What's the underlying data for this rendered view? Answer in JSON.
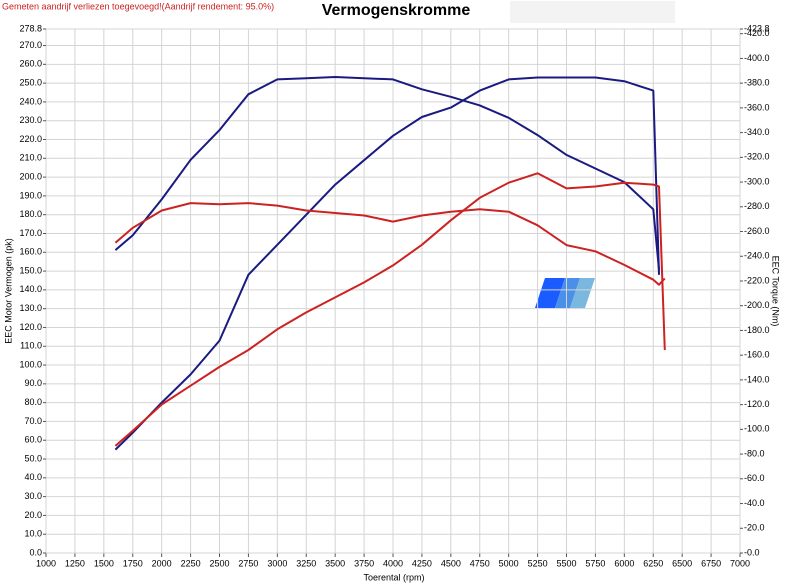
{
  "chart_data": {
    "type": "line",
    "title": "Vermogenskromme",
    "subtitle": "Gemeten aandrijf verliezen toegevoegd!(Aandrijf rendement: 95.0%)",
    "x_label": "Toerental (rpm)",
    "y_label": "EEC Motor Vermogen (pk)",
    "y2_label": "EEC Torque (Nm)",
    "grid": true,
    "xlim": [
      1000,
      7000
    ],
    "xticks": [
      1000,
      1250,
      1500,
      1750,
      2000,
      2250,
      2500,
      2750,
      3000,
      3250,
      3500,
      3750,
      4000,
      4250,
      4500,
      4750,
      5000,
      5250,
      5500,
      5750,
      6000,
      6250,
      6500,
      6750,
      7000
    ],
    "ylim": [
      0,
      278.8
    ],
    "yticks": [
      {
        "value": 0,
        "label": "0.0"
      },
      {
        "value": 10,
        "label": "10.0"
      },
      {
        "value": 20,
        "label": "20.0"
      },
      {
        "value": 30,
        "label": "30.0"
      },
      {
        "value": 40,
        "label": "40.0"
      },
      {
        "value": 50,
        "label": "50.0"
      },
      {
        "value": 60,
        "label": "60.0"
      },
      {
        "value": 70,
        "label": "70.0"
      },
      {
        "value": 80,
        "label": "80.0"
      },
      {
        "value": 90,
        "label": "90.0"
      },
      {
        "value": 100,
        "label": "100.0"
      },
      {
        "value": 110,
        "label": "110.0"
      },
      {
        "value": 120,
        "label": "120.0"
      },
      {
        "value": 130,
        "label": "130.0"
      },
      {
        "value": 140,
        "label": "140.0"
      },
      {
        "value": 150,
        "label": "150.0"
      },
      {
        "value": 160,
        "label": "160.0"
      },
      {
        "value": 170,
        "label": "170.0"
      },
      {
        "value": 180,
        "label": "180.0"
      },
      {
        "value": 190,
        "label": "190.0"
      },
      {
        "value": 200,
        "label": "200.0"
      },
      {
        "value": 210,
        "label": "210.0"
      },
      {
        "value": 220,
        "label": "220.0"
      },
      {
        "value": 230,
        "label": "230.0"
      },
      {
        "value": 240,
        "label": "240.0"
      },
      {
        "value": 250,
        "label": "250.0"
      },
      {
        "value": 260,
        "label": "260.0"
      },
      {
        "value": 270,
        "label": "270.0"
      },
      278.8
    ],
    "y2lim": [
      0,
      423.8
    ],
    "y2ticks": [
      {
        "value": 0,
        "label": "-0.0"
      },
      {
        "value": 20,
        "label": "-20.0"
      },
      {
        "value": 40,
        "label": "-40.0"
      },
      {
        "value": 60,
        "label": "-60.0"
      },
      {
        "value": 80,
        "label": "-80.0"
      },
      {
        "value": 100,
        "label": "-100.0"
      },
      {
        "value": 120,
        "label": "-120.0"
      },
      {
        "value": 140,
        "label": "-140.0"
      },
      {
        "value": 160,
        "label": "-160.0"
      },
      {
        "value": 180,
        "label": "-180.0"
      },
      {
        "value": 200,
        "label": "-200.0"
      },
      {
        "value": 220,
        "label": "-220.0"
      },
      {
        "value": 240,
        "label": "-240.0"
      },
      {
        "value": 260,
        "label": "-260.0"
      },
      {
        "value": 280,
        "label": "-280.0"
      },
      {
        "value": 300,
        "label": "-300.0"
      },
      {
        "value": 320,
        "label": "-320.0"
      },
      {
        "value": 340,
        "label": "-340.0"
      },
      {
        "value": 360,
        "label": "-360.0"
      },
      {
        "value": 380,
        "label": "-380.0"
      },
      {
        "value": 400,
        "label": "-400.0"
      },
      {
        "value": 420,
        "label": "-420.0"
      },
      {
        "value": 423.8,
        "label": "-423.8"
      }
    ],
    "x": [
      1600,
      1750,
      2000,
      2250,
      2500,
      2750,
      3000,
      3250,
      3500,
      3750,
      4000,
      4250,
      4500,
      4750,
      5000,
      5250,
      5500,
      5750,
      6000,
      6250,
      6300,
      6350
    ],
    "series": [
      {
        "color": "#1a1a80",
        "values": [
          55,
          64,
          80,
          95,
          113,
          148,
          164,
          180,
          196,
          209,
          222,
          232,
          237,
          246,
          252,
          253,
          253,
          253,
          251,
          246,
          148,
          null
        ]
      },
      {
        "color": "#1a1a80",
        "axis": "y2",
        "values": [
          245,
          257,
          286,
          318,
          342,
          371,
          383,
          384,
          385,
          384,
          383,
          375,
          369,
          362,
          352,
          338,
          322,
          311,
          300,
          278,
          229,
          null
        ]
      },
      {
        "color": "#cc2222",
        "values": [
          57,
          65,
          79,
          89,
          99,
          108,
          119,
          128,
          136,
          144,
          153,
          164,
          177,
          189,
          197,
          202,
          194,
          195,
          197,
          196,
          195,
          108
        ]
      },
      {
        "color": "#cc2222",
        "axis": "y2",
        "values": [
          251,
          263,
          277,
          283,
          282,
          283,
          281,
          277,
          275,
          273,
          268,
          273,
          276,
          278,
          276,
          265,
          249,
          244,
          233,
          221,
          217,
          222
        ]
      }
    ]
  }
}
